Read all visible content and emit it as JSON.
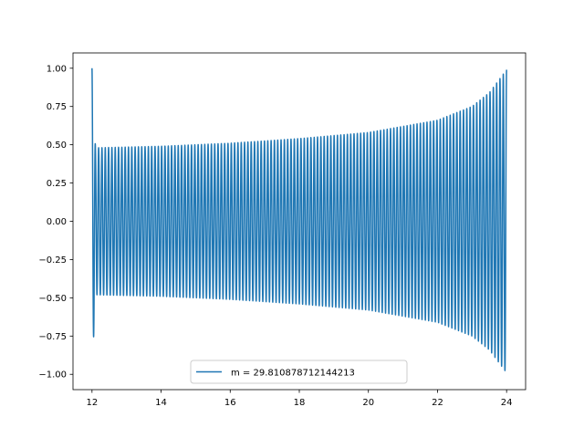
{
  "chart_data": {
    "type": "line",
    "title": "",
    "xlabel": "",
    "ylabel": "",
    "xlim": [
      11.45,
      24.55
    ],
    "ylim": [
      -1.1,
      1.1
    ],
    "x_ticks": [
      12,
      14,
      16,
      18,
      20,
      22,
      24
    ],
    "x_tick_labels": [
      "12",
      "14",
      "16",
      "18",
      "20",
      "22",
      "24"
    ],
    "y_ticks": [
      -1.0,
      -0.75,
      -0.5,
      -0.25,
      0.0,
      0.25,
      0.5,
      0.75,
      1.0
    ],
    "y_tick_labels": [
      "−1.00",
      "−0.75",
      "−0.50",
      "−0.25",
      "0.00",
      "0.25",
      "0.50",
      "0.75",
      "1.00"
    ],
    "grid": false,
    "legend_position": "lower center",
    "series": [
      {
        "name": "m = 29.810878712144213",
        "color": "#1f77b4",
        "x_range": [
          12.0,
          24.0
        ],
        "cycles": 125,
        "envelope": [
          {
            "x": 12.0,
            "amplitude": 1.0
          },
          {
            "x": 12.1,
            "amplitude": 0.48
          },
          {
            "x": 14.0,
            "amplitude": 0.49
          },
          {
            "x": 16.0,
            "amplitude": 0.51
          },
          {
            "x": 18.0,
            "amplitude": 0.54
          },
          {
            "x": 20.0,
            "amplitude": 0.58
          },
          {
            "x": 22.0,
            "amplitude": 0.66
          },
          {
            "x": 23.0,
            "amplitude": 0.75
          },
          {
            "x": 23.5,
            "amplitude": 0.84
          },
          {
            "x": 24.0,
            "amplitude": 0.99
          }
        ]
      }
    ]
  }
}
